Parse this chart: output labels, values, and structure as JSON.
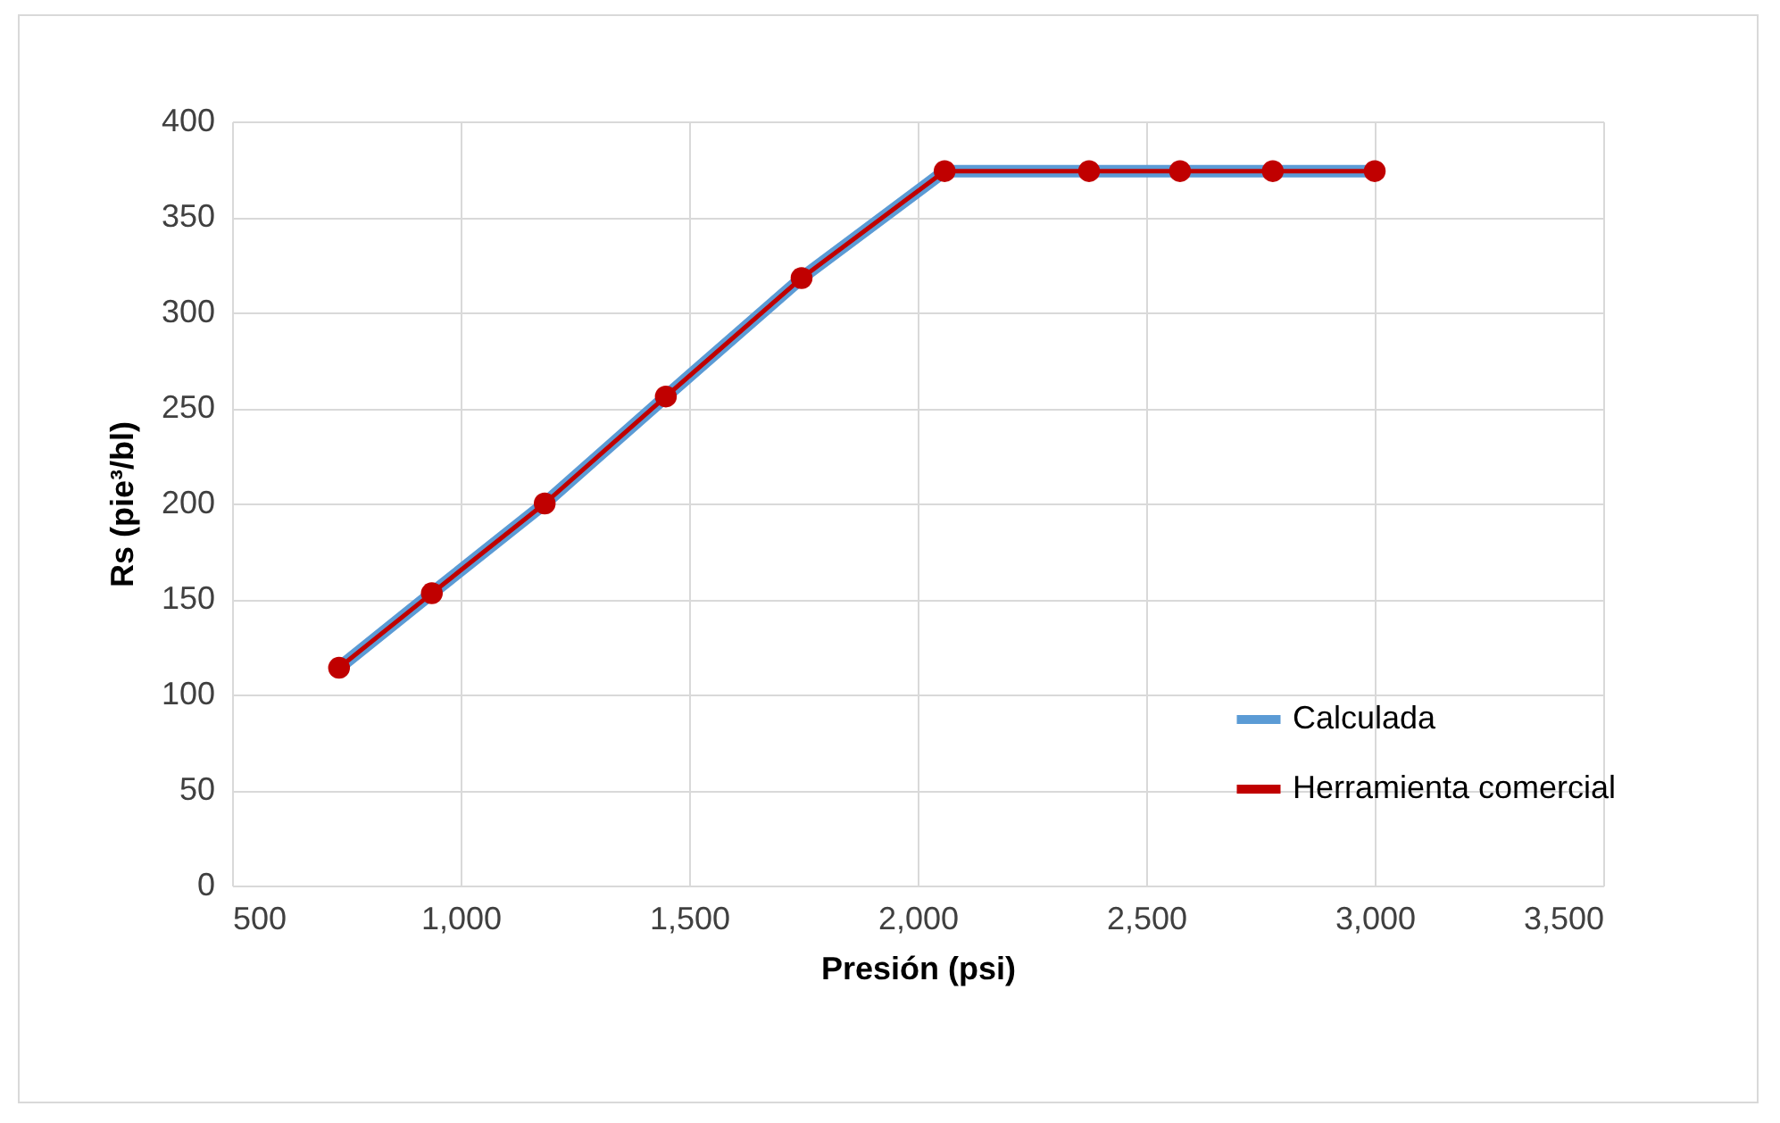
{
  "chart_data": {
    "type": "line",
    "xlabel": "Presión (psi)",
    "ylabel": "Rs (pie³/bl)",
    "xlim": [
      500,
      3500
    ],
    "xticks": [
      500,
      {
        "value": 1000,
        "label": "1,000"
      },
      {
        "value": 1500,
        "label": "1,500"
      },
      {
        "value": 2000,
        "label": "2,000"
      },
      {
        "value": 2500,
        "label": "2,500"
      },
      {
        "value": 3000,
        "label": "3,000"
      },
      {
        "value": 3500,
        "label": "3,500"
      }
    ],
    "ylim": [
      0,
      400
    ],
    "yticks": [
      0,
      50,
      100,
      150,
      200,
      250,
      300,
      350,
      400
    ],
    "x": [
      734,
      937,
      1184,
      1449,
      1746,
      2059,
      2375,
      2574,
      2777,
      3000
    ],
    "series": [
      {
        "name": "Calculada",
        "color": "#5b9bd5",
        "marker": "none",
        "values": [
          114,
          153,
          200,
          256,
          318,
          374,
          374,
          374,
          374,
          374
        ]
      },
      {
        "name": "Herramienta comercial",
        "color": "#c00000",
        "marker": "circle",
        "values": [
          114,
          153,
          200,
          256,
          318,
          374,
          374,
          374,
          374,
          374
        ]
      }
    ],
    "grid": true,
    "legend": "bottom right",
    "line_style": "solid"
  }
}
